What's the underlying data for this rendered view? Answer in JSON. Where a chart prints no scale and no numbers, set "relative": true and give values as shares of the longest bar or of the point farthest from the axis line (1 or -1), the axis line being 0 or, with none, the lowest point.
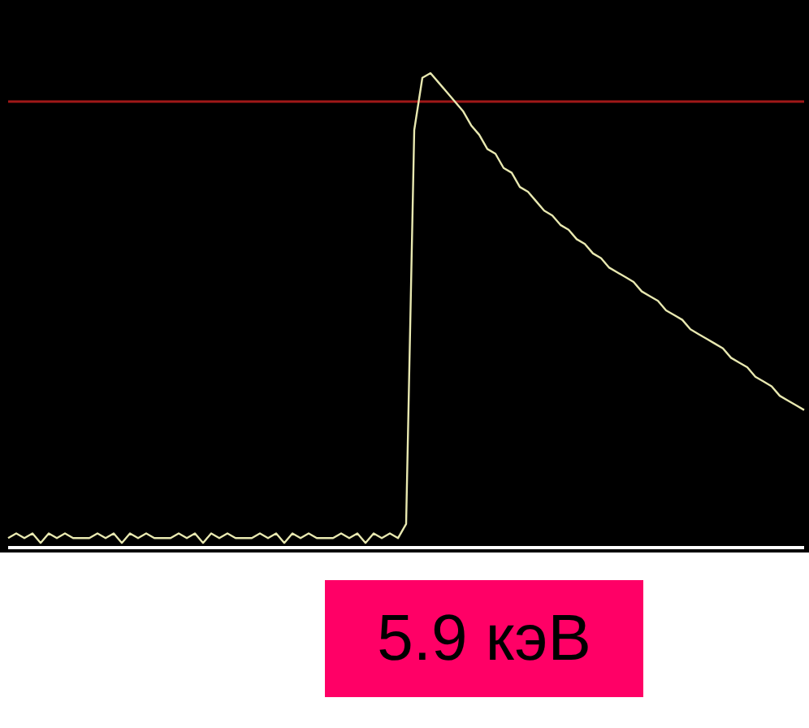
{
  "chart_data": {
    "type": "line",
    "relative": true,
    "annotations": [
      "5.9 кэВ"
    ],
    "categories": [
      null,
      null,
      null,
      null,
      null,
      null,
      null,
      null,
      null,
      null,
      null,
      null,
      null,
      null,
      null,
      null,
      null,
      null,
      null,
      null,
      null,
      null,
      null,
      null,
      null,
      null,
      null,
      null,
      null,
      null,
      null,
      null,
      null,
      null,
      null,
      null,
      null,
      null,
      null,
      null,
      null,
      null,
      null,
      null,
      null,
      null,
      null,
      null,
      null,
      null,
      null,
      null,
      null,
      null,
      null,
      null,
      null,
      null,
      null,
      null,
      null,
      null,
      null,
      null,
      null,
      null,
      null,
      null,
      null,
      null,
      null,
      null,
      null,
      null,
      null,
      null,
      null,
      null,
      null,
      null,
      null,
      null,
      null,
      null,
      null,
      null,
      null,
      null,
      null,
      null,
      null,
      null,
      null,
      null,
      null,
      null,
      null,
      null,
      null
    ],
    "series": [
      {
        "color": "#e8e8b0",
        "values": [
          0.02,
          0.03,
          0.02,
          0.03,
          0.01,
          0.03,
          0.02,
          0.03,
          0.02,
          0.02,
          0.02,
          0.03,
          0.02,
          0.03,
          0.01,
          0.03,
          0.02,
          0.03,
          0.02,
          0.02,
          0.02,
          0.03,
          0.02,
          0.03,
          0.01,
          0.03,
          0.02,
          0.03,
          0.02,
          0.02,
          0.02,
          0.03,
          0.02,
          0.03,
          0.01,
          0.03,
          0.02,
          0.03,
          0.02,
          0.02,
          0.02,
          0.03,
          0.02,
          0.03,
          0.01,
          0.03,
          0.02,
          0.03,
          0.02,
          0.05,
          0.88,
          0.99,
          1.0,
          0.98,
          0.96,
          0.94,
          0.92,
          0.89,
          0.87,
          0.84,
          0.83,
          0.8,
          0.79,
          0.76,
          0.75,
          0.73,
          0.71,
          0.7,
          0.68,
          0.67,
          0.65,
          0.64,
          0.62,
          0.61,
          0.59,
          0.58,
          0.57,
          0.56,
          0.54,
          0.53,
          0.52,
          0.5,
          0.49,
          0.48,
          0.46,
          0.45,
          0.44,
          0.43,
          0.42,
          0.4,
          0.39,
          0.38,
          0.36,
          0.35,
          0.34,
          0.32,
          0.31,
          0.3,
          0.29
        ]
      }
    ],
    "ref_lines": [
      {
        "axis": "y",
        "value": 0.94,
        "color": "#a01818"
      }
    ]
  }
}
